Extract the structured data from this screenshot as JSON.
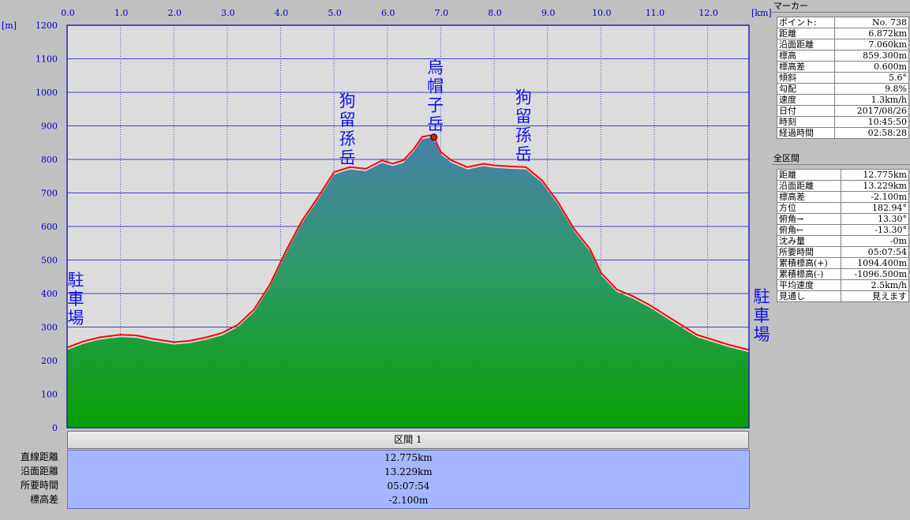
{
  "chart_data": {
    "type": "area",
    "xunit": "[km]",
    "yunit": "[m]",
    "xlim": [
      0,
      12.775
    ],
    "ylim": [
      0,
      1200
    ],
    "x_ticks": [
      "0.0",
      "1.0",
      "2.0",
      "3.0",
      "4.0",
      "5.0",
      "6.0",
      "7.0",
      "8.0",
      "9.0",
      "10.0",
      "11.0",
      "12.0"
    ],
    "y_ticks": [
      "0",
      "100",
      "200",
      "300",
      "400",
      "500",
      "600",
      "700",
      "800",
      "900",
      "1000",
      "1100",
      "1200"
    ],
    "grid": true,
    "colors": {
      "plot_bg": "#dcdcdc",
      "grid": "#4444cc",
      "frame": "#2222aa",
      "fill_top": "#4a7faa",
      "fill_bottom": "#0aa000",
      "route_line": "#ff0000",
      "marker": "#cc2200"
    },
    "series": [
      {
        "x": [
          0,
          0.3,
          0.6,
          1.0,
          1.3,
          1.6,
          2.0,
          2.3,
          2.6,
          2.9,
          3.2,
          3.5,
          3.8,
          4.1,
          4.4,
          4.7,
          5.0,
          5.3,
          5.6,
          5.9,
          6.1,
          6.3,
          6.5,
          6.65,
          6.8,
          6.9,
          7.0,
          7.2,
          7.5,
          7.8,
          8.0,
          8.3,
          8.6,
          8.9,
          9.2,
          9.5,
          9.8,
          10.0,
          10.3,
          10.6,
          10.9,
          11.2,
          11.5,
          11.8,
          12.1,
          12.4,
          12.775
        ],
        "y": [
          232,
          250,
          262,
          270,
          268,
          258,
          248,
          252,
          262,
          275,
          300,
          345,
          420,
          520,
          610,
          680,
          755,
          770,
          765,
          790,
          780,
          790,
          825,
          860,
          865,
          850,
          815,
          790,
          770,
          780,
          775,
          772,
          770,
          730,
          665,
          585,
          525,
          455,
          405,
          385,
          360,
          330,
          300,
          270,
          255,
          240,
          225
        ]
      }
    ],
    "marker": {
      "x": 6.872,
      "y": 859.3
    },
    "peak_labels": [
      {
        "text": "狗留孫岳",
        "x": 5.25,
        "y": 765
      },
      {
        "text": "烏帽子岳",
        "x": 6.9,
        "y": 865
      },
      {
        "text": "狗留孫岳",
        "x": 8.55,
        "y": 775
      }
    ],
    "end_labels": [
      {
        "text": "駐車場",
        "side": "left",
        "y": 330
      },
      {
        "text": "駐車場",
        "side": "right",
        "y": 280
      }
    ]
  },
  "marker_panel": {
    "title": "マーカー",
    "rows": [
      {
        "label": "ポイント:",
        "value": "No. 738"
      },
      {
        "label": "距離",
        "value": "6.872km"
      },
      {
        "label": "沿面距離",
        "value": "7.060km"
      },
      {
        "label": "標高",
        "value": "859.300m"
      },
      {
        "label": "標高差",
        "value": "0.600m"
      },
      {
        "label": "傾斜",
        "value": "5.6°"
      },
      {
        "label": "勾配",
        "value": "9.8%"
      },
      {
        "label": "速度",
        "value": "1.3km/h"
      },
      {
        "label": "日付",
        "value": "2017/08/26"
      },
      {
        "label": "時刻",
        "value": "10:45:50"
      },
      {
        "label": "経過時間",
        "value": "02:58:28"
      }
    ]
  },
  "section_panel": {
    "title": "全区間",
    "rows": [
      {
        "label": "距離",
        "value": "12.775km"
      },
      {
        "label": "沿面距離",
        "value": "13.229km"
      },
      {
        "label": "標高差",
        "value": "-2.100m"
      },
      {
        "label": "方位",
        "value": "182.94°"
      },
      {
        "label": "俯角→",
        "value": "13.30°"
      },
      {
        "label": "俯角←",
        "value": "-13.30°"
      },
      {
        "label": "沈み量",
        "value": "-0m"
      },
      {
        "label": "所要時間",
        "value": "05:07:54"
      },
      {
        "label": "累積標高(+)",
        "value": "1094.400m"
      },
      {
        "label": "累積標高(-)",
        "value": "-1096.500m"
      },
      {
        "label": "平均速度",
        "value": "2.5km/h"
      },
      {
        "label": "見通し",
        "value": "見えます"
      }
    ]
  },
  "summary": {
    "header": "区間 1",
    "rows": [
      {
        "label": "直線距離",
        "value": "12.775km"
      },
      {
        "label": "沿面距離",
        "value": "13.229km"
      },
      {
        "label": "所要時間",
        "value": "05:07:54"
      },
      {
        "label": "標高差",
        "value": "-2.100m"
      }
    ]
  }
}
